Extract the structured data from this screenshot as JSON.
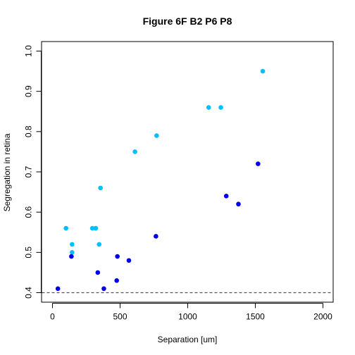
{
  "chart_data": {
    "type": "scatter",
    "title": "Figure 6F B2 P6 P8",
    "xlabel": "Separation [um]",
    "ylabel": "Segregation in retina",
    "xlim": [
      0,
      2000
    ],
    "ylim": [
      0.4,
      1.0
    ],
    "x_ticks": [
      "0",
      "500",
      "1000",
      "1500",
      "2000"
    ],
    "y_ticks": [
      "0.4",
      "0.5",
      "0.6",
      "0.7",
      "0.8",
      "0.9",
      "1.0"
    ],
    "grid": false,
    "reference_line": {
      "y": 0.4,
      "style": "dashed"
    },
    "series": [
      {
        "color": "#00bfff",
        "points": [
          {
            "x": 100,
            "y": 0.56
          },
          {
            "x": 145,
            "y": 0.52
          },
          {
            "x": 145,
            "y": 0.5
          },
          {
            "x": 295,
            "y": 0.56
          },
          {
            "x": 320,
            "y": 0.56
          },
          {
            "x": 345,
            "y": 0.52
          },
          {
            "x": 355,
            "y": 0.66
          },
          {
            "x": 610,
            "y": 0.75
          },
          {
            "x": 770,
            "y": 0.79
          },
          {
            "x": 1155,
            "y": 0.86
          },
          {
            "x": 1245,
            "y": 0.86
          },
          {
            "x": 1555,
            "y": 0.95
          }
        ]
      },
      {
        "color": "#0000ee",
        "points": [
          {
            "x": 40,
            "y": 0.41
          },
          {
            "x": 140,
            "y": 0.49
          },
          {
            "x": 335,
            "y": 0.45
          },
          {
            "x": 380,
            "y": 0.41
          },
          {
            "x": 475,
            "y": 0.43
          },
          {
            "x": 480,
            "y": 0.49
          },
          {
            "x": 565,
            "y": 0.48
          },
          {
            "x": 765,
            "y": 0.54
          },
          {
            "x": 1285,
            "y": 0.64
          },
          {
            "x": 1375,
            "y": 0.62
          },
          {
            "x": 1520,
            "y": 0.72
          }
        ]
      }
    ]
  }
}
